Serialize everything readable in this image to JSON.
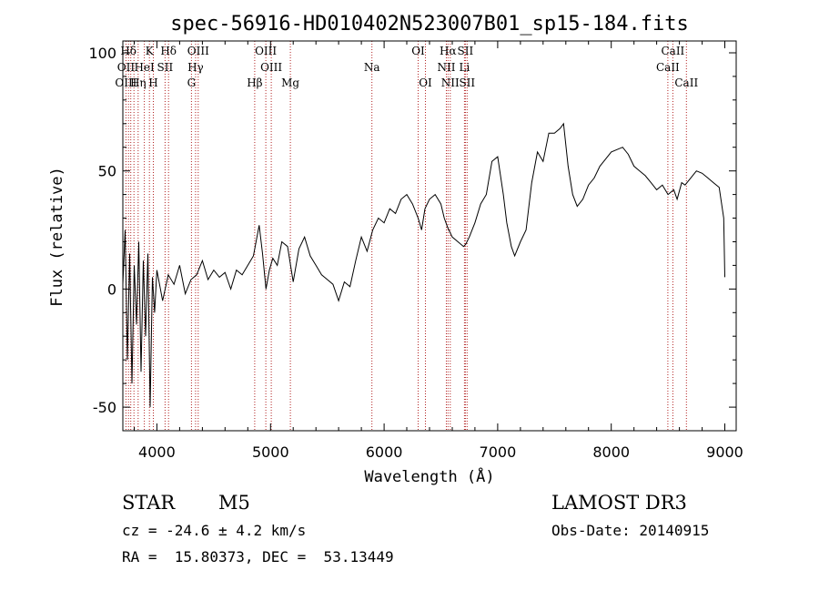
{
  "chart_data": {
    "type": "line",
    "title": "spec-56916-HD010402N523007B01_sp15-184.fits",
    "xlabel": "Wavelength (Å)",
    "ylabel": "Flux (relative)",
    "xlim": [
      3700,
      9100
    ],
    "ylim": [
      -60,
      105
    ],
    "xticks": [
      4000,
      5000,
      6000,
      7000,
      8000,
      9000
    ],
    "yticks": [
      -50,
      0,
      50,
      100
    ],
    "grid": false,
    "series": [
      {
        "name": "flux",
        "x": [
          3700,
          3720,
          3740,
          3760,
          3780,
          3800,
          3820,
          3840,
          3860,
          3880,
          3900,
          3920,
          3940,
          3960,
          3980,
          4000,
          4050,
          4100,
          4150,
          4200,
          4250,
          4300,
          4350,
          4400,
          4450,
          4500,
          4550,
          4600,
          4650,
          4700,
          4750,
          4800,
          4850,
          4900,
          4930,
          4960,
          4990,
          5020,
          5060,
          5100,
          5150,
          5200,
          5250,
          5300,
          5350,
          5400,
          5450,
          5500,
          5550,
          5600,
          5650,
          5700,
          5750,
          5800,
          5850,
          5900,
          5950,
          6000,
          6050,
          6100,
          6150,
          6200,
          6250,
          6300,
          6330,
          6360,
          6400,
          6450,
          6500,
          6530,
          6560,
          6600,
          6650,
          6700,
          6720,
          6750,
          6800,
          6850,
          6900,
          6950,
          7000,
          7050,
          7080,
          7120,
          7150,
          7200,
          7250,
          7300,
          7350,
          7400,
          7450,
          7500,
          7550,
          7580,
          7620,
          7660,
          7700,
          7750,
          7800,
          7850,
          7900,
          7950,
          8000,
          8050,
          8100,
          8150,
          8200,
          8250,
          8300,
          8350,
          8400,
          8450,
          8500,
          8550,
          8580,
          8620,
          8650,
          8700,
          8750,
          8800,
          8850,
          8900,
          8950,
          8990,
          9000
        ],
        "y": [
          2,
          25,
          -30,
          15,
          -40,
          10,
          -15,
          20,
          -35,
          12,
          -20,
          15,
          -50,
          5,
          -10,
          8,
          -5,
          6,
          2,
          10,
          -2,
          4,
          6,
          12,
          4,
          8,
          5,
          7,
          0,
          8,
          6,
          10,
          14,
          27,
          15,
          0,
          8,
          13,
          10,
          20,
          18,
          3,
          17,
          22,
          14,
          10,
          6,
          4,
          2,
          -5,
          3,
          1,
          12,
          22,
          16,
          25,
          30,
          28,
          34,
          32,
          38,
          40,
          36,
          30,
          25,
          34,
          38,
          40,
          36,
          30,
          26,
          22,
          20,
          18,
          19,
          22,
          28,
          36,
          40,
          54,
          56,
          40,
          28,
          18,
          14,
          20,
          25,
          45,
          58,
          54,
          66,
          66,
          68,
          70,
          52,
          40,
          35,
          38,
          44,
          47,
          52,
          55,
          58,
          59,
          60,
          57,
          52,
          50,
          48,
          45,
          42,
          44,
          40,
          42,
          38,
          45,
          44,
          47,
          50,
          49,
          47,
          45,
          43,
          30,
          5
        ]
      }
    ],
    "line_labels": [
      {
        "text": "Hδ",
        "wavelength": 3750,
        "row": 1
      },
      {
        "text": "K",
        "wavelength": 3934,
        "row": 1
      },
      {
        "text": "Hδ",
        "wavelength": 4102,
        "row": 1
      },
      {
        "text": "OIII",
        "wavelength": 4363,
        "row": 1
      },
      {
        "text": "OIII",
        "wavelength": 4959,
        "row": 1
      },
      {
        "text": "OI",
        "wavelength": 6300,
        "row": 1
      },
      {
        "text": "Hα",
        "wavelength": 6563,
        "row": 1
      },
      {
        "text": "SII",
        "wavelength": 6716,
        "row": 1
      },
      {
        "text": "CaII",
        "wavelength": 8542,
        "row": 1
      },
      {
        "text": "OII",
        "wavelength": 3727,
        "row": 2
      },
      {
        "text": "HeI",
        "wavelength": 3889,
        "row": 2
      },
      {
        "text": "SII",
        "wavelength": 4072,
        "row": 2
      },
      {
        "text": "Hγ",
        "wavelength": 4340,
        "row": 2
      },
      {
        "text": "OIII",
        "wavelength": 5007,
        "row": 2
      },
      {
        "text": "Na",
        "wavelength": 5893,
        "row": 2
      },
      {
        "text": "NII",
        "wavelength": 6548,
        "row": 2
      },
      {
        "text": "Li",
        "wavelength": 6708,
        "row": 2
      },
      {
        "text": "CaII",
        "wavelength": 8498,
        "row": 2
      },
      {
        "text": "OIII",
        "wavelength": 3727,
        "row": 3
      },
      {
        "text": "Hη",
        "wavelength": 3835,
        "row": 3
      },
      {
        "text": "H",
        "wavelength": 3968,
        "row": 3
      },
      {
        "text": "G",
        "wavelength": 4304,
        "row": 3
      },
      {
        "text": "Hβ",
        "wavelength": 4861,
        "row": 3
      },
      {
        "text": "Mg",
        "wavelength": 5175,
        "row": 3
      },
      {
        "text": "OI",
        "wavelength": 6364,
        "row": 3
      },
      {
        "text": "NII",
        "wavelength": 6583,
        "row": 3
      },
      {
        "text": "SII",
        "wavelength": 6731,
        "row": 3
      },
      {
        "text": "CaII",
        "wavelength": 8662,
        "row": 3
      }
    ],
    "line_markers": [
      3727,
      3750,
      3770,
      3798,
      3835,
      3889,
      3934,
      3968,
      4072,
      4102,
      4304,
      4340,
      4363,
      4861,
      4959,
      5007,
      5175,
      5893,
      6300,
      6364,
      6548,
      6563,
      6583,
      6708,
      6716,
      6731,
      8498,
      8542,
      8662
    ],
    "line_color": "#b22222"
  },
  "info": {
    "object_class": "STAR",
    "subclass": "M5",
    "survey": "LAMOST DR3",
    "cz_line": "cz = -24.6 ± 4.2 km/s",
    "obs_date_line": "Obs-Date: 20140915",
    "coords_line": "RA =  15.80373, DEC =  53.13449"
  }
}
